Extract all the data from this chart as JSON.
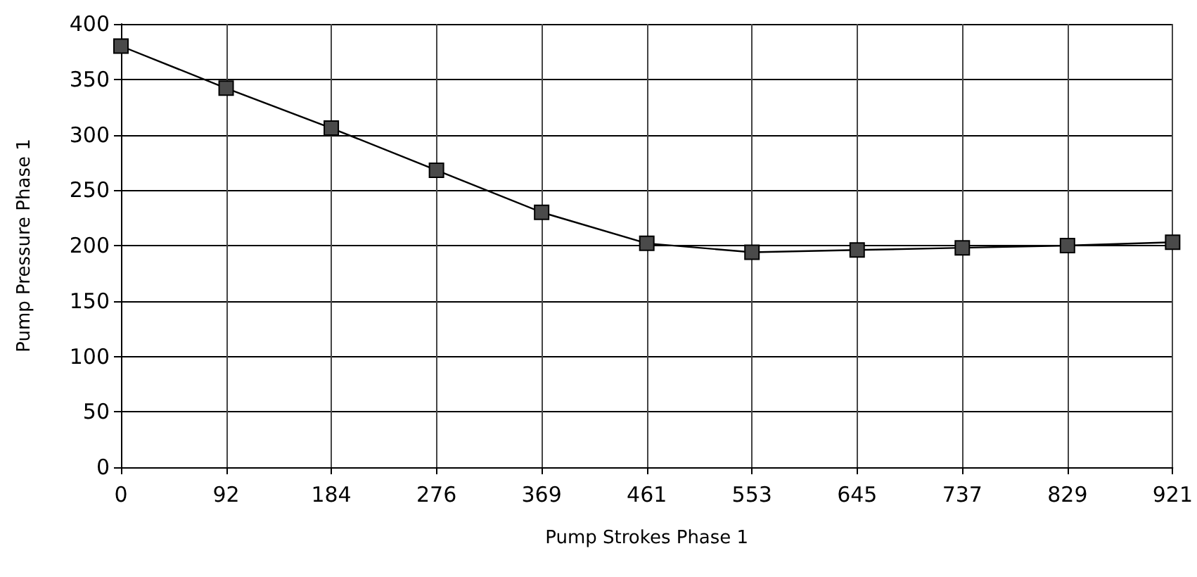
{
  "chart_data": {
    "type": "line",
    "xlabel": "Pump Strokes Phase 1",
    "ylabel": "Pump Pressure Phase 1",
    "categories": [
      "0",
      "92",
      "184",
      "276",
      "369",
      "461",
      "553",
      "645",
      "737",
      "829",
      "921"
    ],
    "series": [
      {
        "color": "#4a4a4a",
        "values": [
          380,
          342,
          306,
          268,
          230,
          202,
          194,
          196,
          198,
          200,
          203
        ]
      }
    ],
    "ylim": [
      0,
      400
    ],
    "yticks": [
      0,
      50,
      100,
      150,
      200,
      250,
      300,
      350,
      400
    ],
    "grid": true,
    "marker": "square",
    "line_style": "solid"
  }
}
